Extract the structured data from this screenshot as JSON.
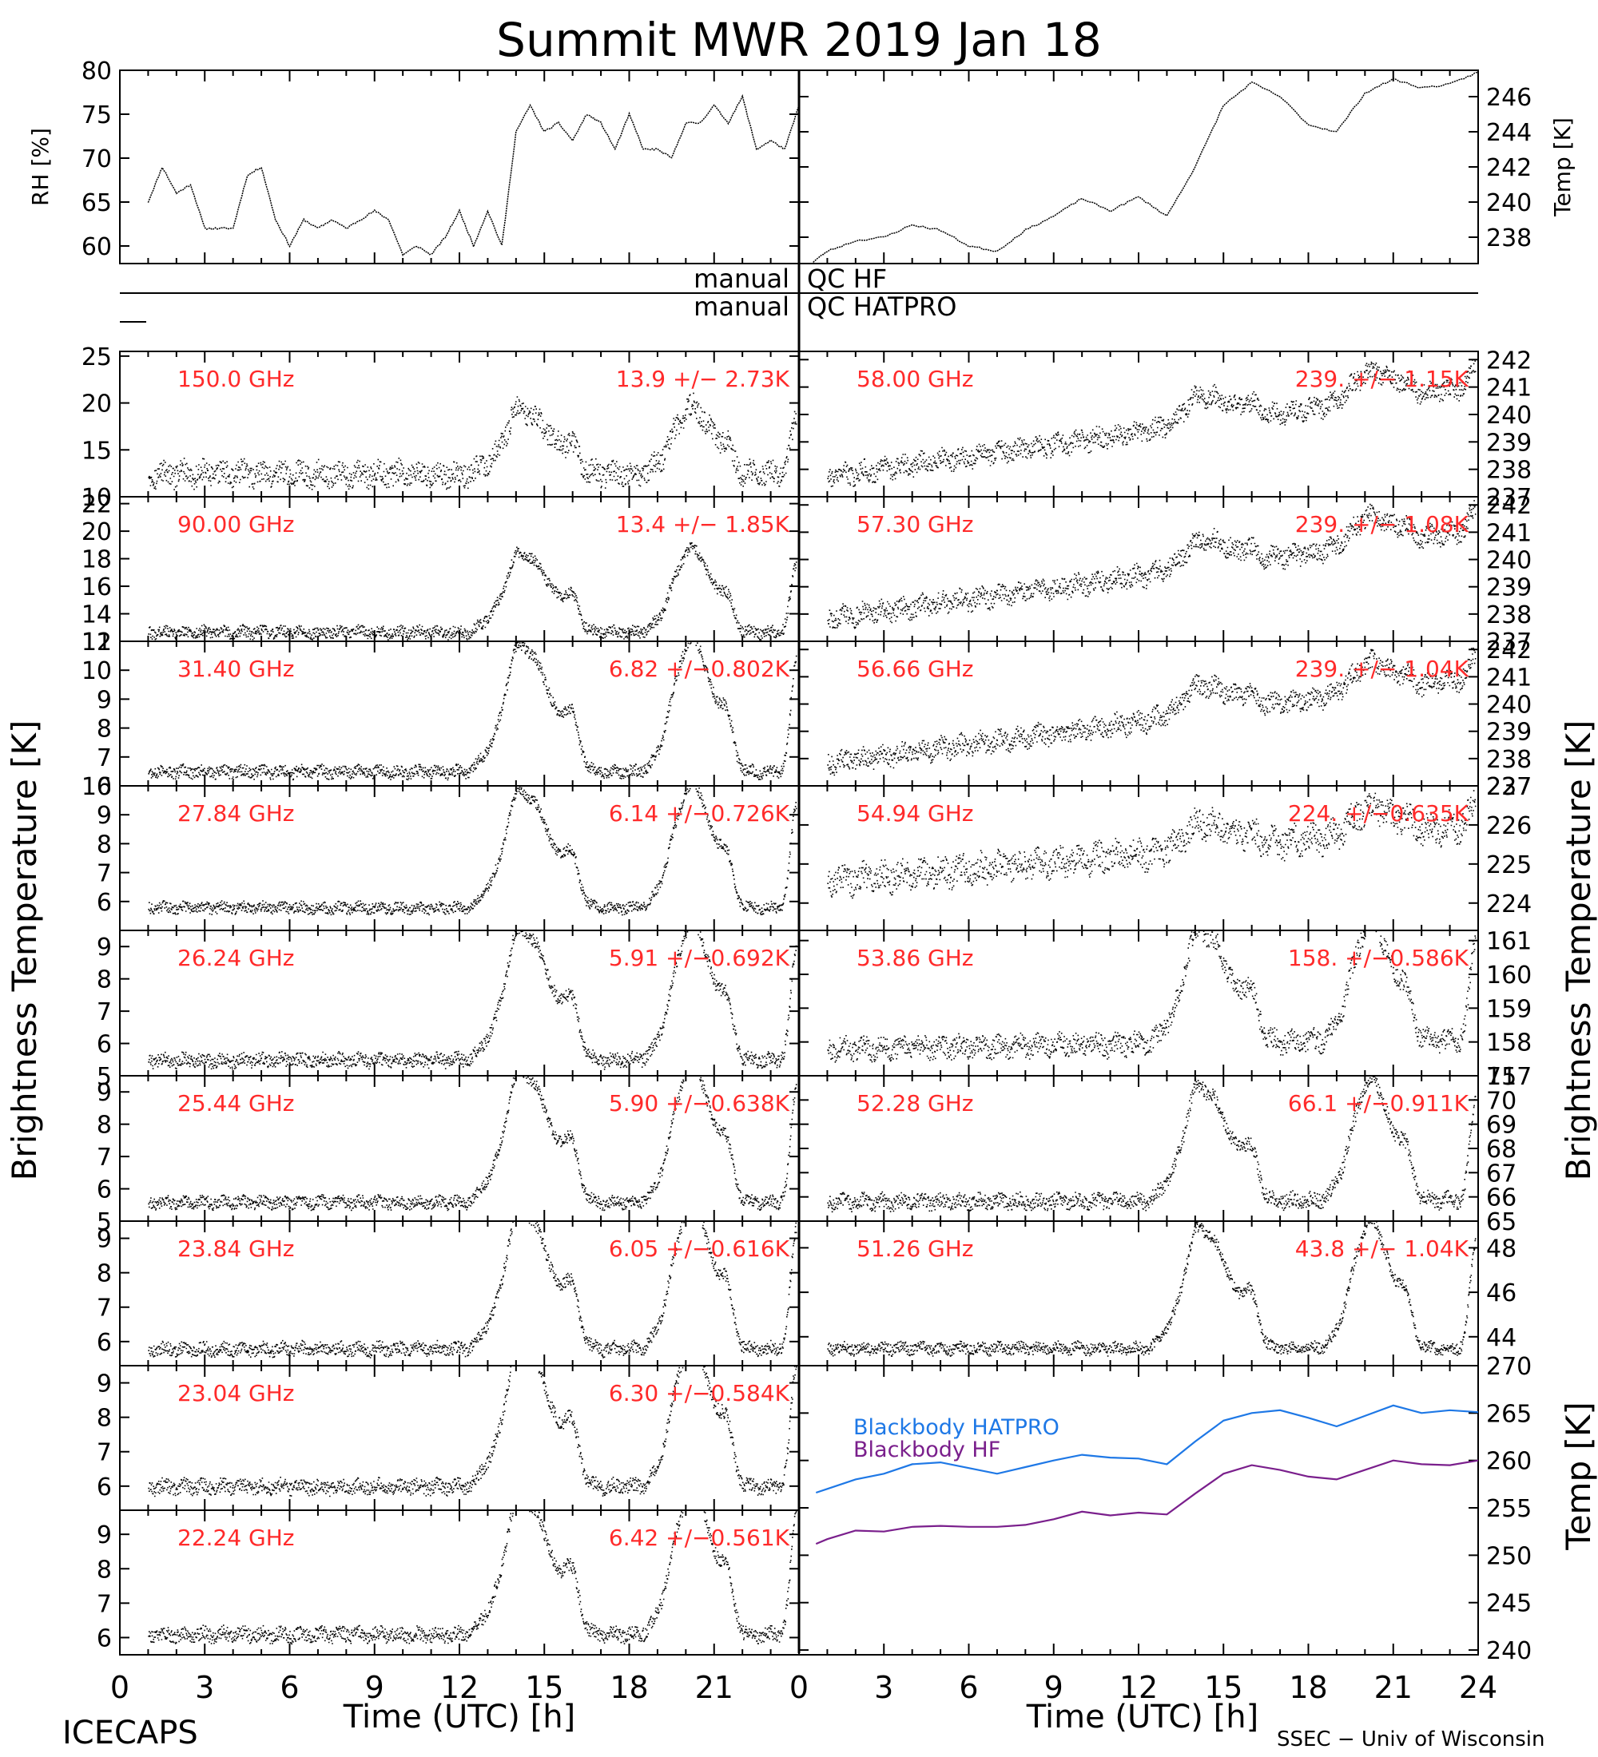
{
  "title": "Summit MWR 2019 Jan 18",
  "footer_left": "ICECAPS",
  "footer_right": "SSEC − Univ of Wisconsin",
  "xlabel": "Time (UTC) [h]",
  "left_ylabel": "Brightness Temperature [K]",
  "right_ylabel": "Brightness Temperature [K]",
  "bb_ylabel": "Temp [K]",
  "xticks": [
    "0",
    "3",
    "6",
    "9",
    "12",
    "15",
    "18",
    "21"
  ],
  "xticks_right": [
    "0",
    "3",
    "6",
    "9",
    "12",
    "15",
    "18",
    "21",
    "24"
  ],
  "qc": {
    "hf_left": "manual",
    "hf_right": "QC HF",
    "hatpro_left": "manual",
    "hatpro_right": "QC HATPRO"
  },
  "colors": {
    "annotation": "#ff2a2a",
    "hatpro": "#1e78e6",
    "hf": "#7a1f8c",
    "data": "#000000"
  },
  "chart_data": [
    {
      "type": "line",
      "id": "rh",
      "ylabel": "RH [%]",
      "xlim": [
        0,
        24
      ],
      "ylim": [
        58,
        80
      ],
      "yticks": [
        60,
        65,
        70,
        75,
        80
      ],
      "x": [
        1,
        1.5,
        2,
        2.5,
        3,
        3.5,
        4,
        4.5,
        5,
        5.5,
        6,
        6.5,
        7,
        7.5,
        8,
        8.5,
        9,
        9.5,
        10,
        10.5,
        11,
        11.5,
        12,
        12.5,
        13,
        13.5,
        14,
        14.5,
        15,
        15.5,
        16,
        16.5,
        17,
        17.5,
        18,
        18.5,
        19,
        19.5,
        20,
        20.5,
        21,
        21.5,
        22,
        22.5,
        23,
        23.5,
        24
      ],
      "y": [
        65,
        69,
        66,
        67,
        62,
        62,
        62,
        68,
        69,
        63,
        60,
        63,
        62,
        63,
        62,
        63,
        64,
        63,
        59,
        60,
        59,
        61,
        64,
        60,
        64,
        60,
        73,
        76,
        73,
        74,
        72,
        75,
        74,
        71,
        75,
        71,
        71,
        70,
        74,
        74,
        76,
        74,
        77,
        71,
        72,
        71,
        76
      ]
    },
    {
      "type": "line",
      "id": "temp",
      "ylabel": "Temp [K]",
      "xlim": [
        0,
        24
      ],
      "ylim": [
        236.5,
        247.5
      ],
      "yticks": [
        238,
        240,
        242,
        244,
        246
      ],
      "x": [
        0.5,
        1,
        2,
        3,
        4,
        5,
        6,
        7,
        8,
        9,
        10,
        11,
        12,
        13,
        14,
        15,
        16,
        17,
        18,
        19,
        20,
        21,
        22,
        23,
        24
      ],
      "y": [
        236.6,
        237.2,
        237.8,
        238.0,
        238.7,
        238.4,
        237.5,
        237.2,
        238.4,
        239.2,
        240.2,
        239.5,
        240.3,
        239.2,
        242.0,
        245.5,
        246.8,
        246.0,
        244.4,
        244.0,
        246.2,
        247.0,
        246.5,
        246.7,
        247.4
      ]
    },
    {
      "type": "scatter",
      "id": "ch150",
      "freq": "150.0 GHz",
      "stat": "13.9 +/−  2.73K",
      "ylim": [
        10,
        25.5
      ],
      "yticks": [
        10,
        15,
        20,
        25
      ],
      "base": 12.5,
      "noise": 1.2,
      "bump": 1.0,
      "trend": 0
    },
    {
      "type": "scatter",
      "id": "ch90",
      "freq": "90.00 GHz",
      "stat": "13.4 +/−  1.85K",
      "ylim": [
        12,
        22.5
      ],
      "yticks": [
        12,
        14,
        16,
        18,
        20,
        22
      ],
      "base": 12.7,
      "noise": 0.4,
      "bump": 0.85,
      "trend": 0
    },
    {
      "type": "scatter",
      "id": "ch314",
      "freq": "31.40 GHz",
      "stat": "6.82 +/−0.802K",
      "ylim": [
        6,
        11
      ],
      "yticks": [
        6,
        7,
        8,
        9,
        10,
        11
      ],
      "base": 6.5,
      "noise": 0.2,
      "bump": 0.65,
      "trend": 0
    },
    {
      "type": "scatter",
      "id": "ch2784",
      "freq": "27.84 GHz",
      "stat": "6.14 +/−0.726K",
      "ylim": [
        5,
        10
      ],
      "yticks": [
        6,
        7,
        8,
        9,
        10
      ],
      "base": 5.8,
      "noise": 0.18,
      "bump": 0.6,
      "trend": 0
    },
    {
      "type": "scatter",
      "id": "ch2624",
      "freq": "26.24 GHz",
      "stat": "5.91 +/−0.692K",
      "ylim": [
        5,
        9.5
      ],
      "yticks": [
        5,
        6,
        7,
        8,
        9
      ],
      "base": 5.5,
      "noise": 0.2,
      "bump": 0.6,
      "trend": 0
    },
    {
      "type": "scatter",
      "id": "ch2544",
      "freq": "25.44 GHz",
      "stat": "5.90 +/−0.638K",
      "ylim": [
        5,
        9.5
      ],
      "yticks": [
        5,
        6,
        7,
        8,
        9
      ],
      "base": 5.6,
      "noise": 0.18,
      "bump": 0.6,
      "trend": 0
    },
    {
      "type": "scatter",
      "id": "ch2384",
      "freq": "23.84 GHz",
      "stat": "6.05 +/−0.616K",
      "ylim": [
        5.3,
        9.5
      ],
      "yticks": [
        6,
        7,
        8,
        9
      ],
      "base": 5.8,
      "noise": 0.18,
      "bump": 0.6,
      "trend": 0
    },
    {
      "type": "scatter",
      "id": "ch2304",
      "freq": "23.04 GHz",
      "stat": "6.30 +/−0.584K",
      "ylim": [
        5.3,
        9.5
      ],
      "yticks": [
        6,
        7,
        8,
        9
      ],
      "base": 6.0,
      "noise": 0.2,
      "bump": 0.6,
      "trend": 0
    },
    {
      "type": "scatter",
      "id": "ch2224",
      "freq": "22.24 GHz",
      "stat": "6.42 +/−0.561K",
      "ylim": [
        5.5,
        9.7
      ],
      "yticks": [
        6,
        7,
        8,
        9
      ],
      "base": 6.1,
      "noise": 0.2,
      "bump": 0.6,
      "trend": 0
    },
    {
      "type": "scatter",
      "id": "ch5800",
      "freq": "58.00 GHz",
      "stat": "239. +/− 1.15K",
      "ylim": [
        237,
        242.3
      ],
      "yticks": [
        237,
        238,
        239,
        240,
        241,
        242
      ],
      "base": 237.6,
      "noise": 0.35,
      "bump": 0.15,
      "trend": 3.5
    },
    {
      "type": "scatter",
      "id": "ch5730",
      "freq": "57.30 GHz",
      "stat": "239. +/− 1.08K",
      "ylim": [
        237,
        242.3
      ],
      "yticks": [
        237,
        238,
        239,
        240,
        241,
        242
      ],
      "base": 237.7,
      "noise": 0.35,
      "bump": 0.15,
      "trend": 3.4
    },
    {
      "type": "scatter",
      "id": "ch5666",
      "freq": "56.66 GHz",
      "stat": "239. +/− 1.04K",
      "ylim": [
        237,
        242.3
      ],
      "yticks": [
        237,
        238,
        239,
        240,
        241,
        242
      ],
      "base": 237.7,
      "noise": 0.35,
      "bump": 0.15,
      "trend": 3.3
    },
    {
      "type": "scatter",
      "id": "ch5494",
      "freq": "54.94 GHz",
      "stat": "224. +/−0.635K",
      "ylim": [
        223.3,
        227
      ],
      "yticks": [
        224,
        225,
        226,
        227
      ],
      "base": 224.5,
      "noise": 0.35,
      "bump": 0.1,
      "trend": 1.5
    },
    {
      "type": "scatter",
      "id": "ch5386",
      "freq": "53.86 GHz",
      "stat": "158. +/−0.586K",
      "ylim": [
        157,
        161.3
      ],
      "yticks": [
        157,
        158,
        159,
        160,
        161
      ],
      "base": 157.8,
      "noise": 0.3,
      "bump": 0.5,
      "trend": 0.3
    },
    {
      "type": "scatter",
      "id": "ch5228",
      "freq": "52.28 GHz",
      "stat": "66.1 +/−0.911K",
      "ylim": [
        65,
        71
      ],
      "yticks": [
        65,
        66,
        67,
        68,
        69,
        70,
        71
      ],
      "base": 65.8,
      "noise": 0.3,
      "bump": 0.7,
      "trend": 0.1
    },
    {
      "type": "scatter",
      "id": "ch5126",
      "freq": "51.26 GHz",
      "stat": "43.8 +/− 1.04K",
      "ylim": [
        42.7,
        49.2
      ],
      "yticks": [
        44,
        46,
        48
      ],
      "base": 43.5,
      "noise": 0.25,
      "bump": 0.8,
      "trend": 0
    },
    {
      "type": "line",
      "id": "blackbody",
      "ylabel": "Temp [K]",
      "xlim": [
        0,
        24
      ],
      "ylim": [
        239.5,
        270
      ],
      "yticks": [
        240,
        245,
        250,
        255,
        260,
        265,
        270
      ],
      "series": [
        {
          "name": "Blackbody HATPRO",
          "x": [
            0.6,
            1,
            2,
            3,
            4,
            5,
            6,
            7,
            8,
            9,
            10,
            11,
            12,
            13,
            14,
            15,
            16,
            17,
            18,
            19,
            20,
            21,
            22,
            23,
            24
          ],
          "y": [
            256.6,
            257.0,
            258.0,
            258.6,
            259.6,
            259.8,
            259.2,
            258.6,
            259.3,
            260.0,
            260.6,
            260.3,
            260.2,
            259.6,
            262.0,
            264.2,
            265.0,
            265.3,
            264.5,
            263.6,
            264.7,
            265.8,
            265.0,
            265.3,
            265.1
          ]
        },
        {
          "name": "Blackbody HF",
          "x": [
            0.6,
            1,
            2,
            3,
            4,
            5,
            6,
            7,
            8,
            9,
            10,
            11,
            12,
            13,
            14,
            15,
            16,
            17,
            18,
            19,
            20,
            21,
            22,
            23,
            24
          ],
          "y": [
            251.2,
            251.7,
            252.6,
            252.5,
            253.0,
            253.1,
            253.0,
            253.0,
            253.2,
            253.8,
            254.6,
            254.2,
            254.5,
            254.3,
            256.5,
            258.6,
            259.5,
            259.0,
            258.3,
            258.0,
            259.0,
            260.0,
            259.6,
            259.5,
            260.0
          ]
        }
      ]
    }
  ]
}
